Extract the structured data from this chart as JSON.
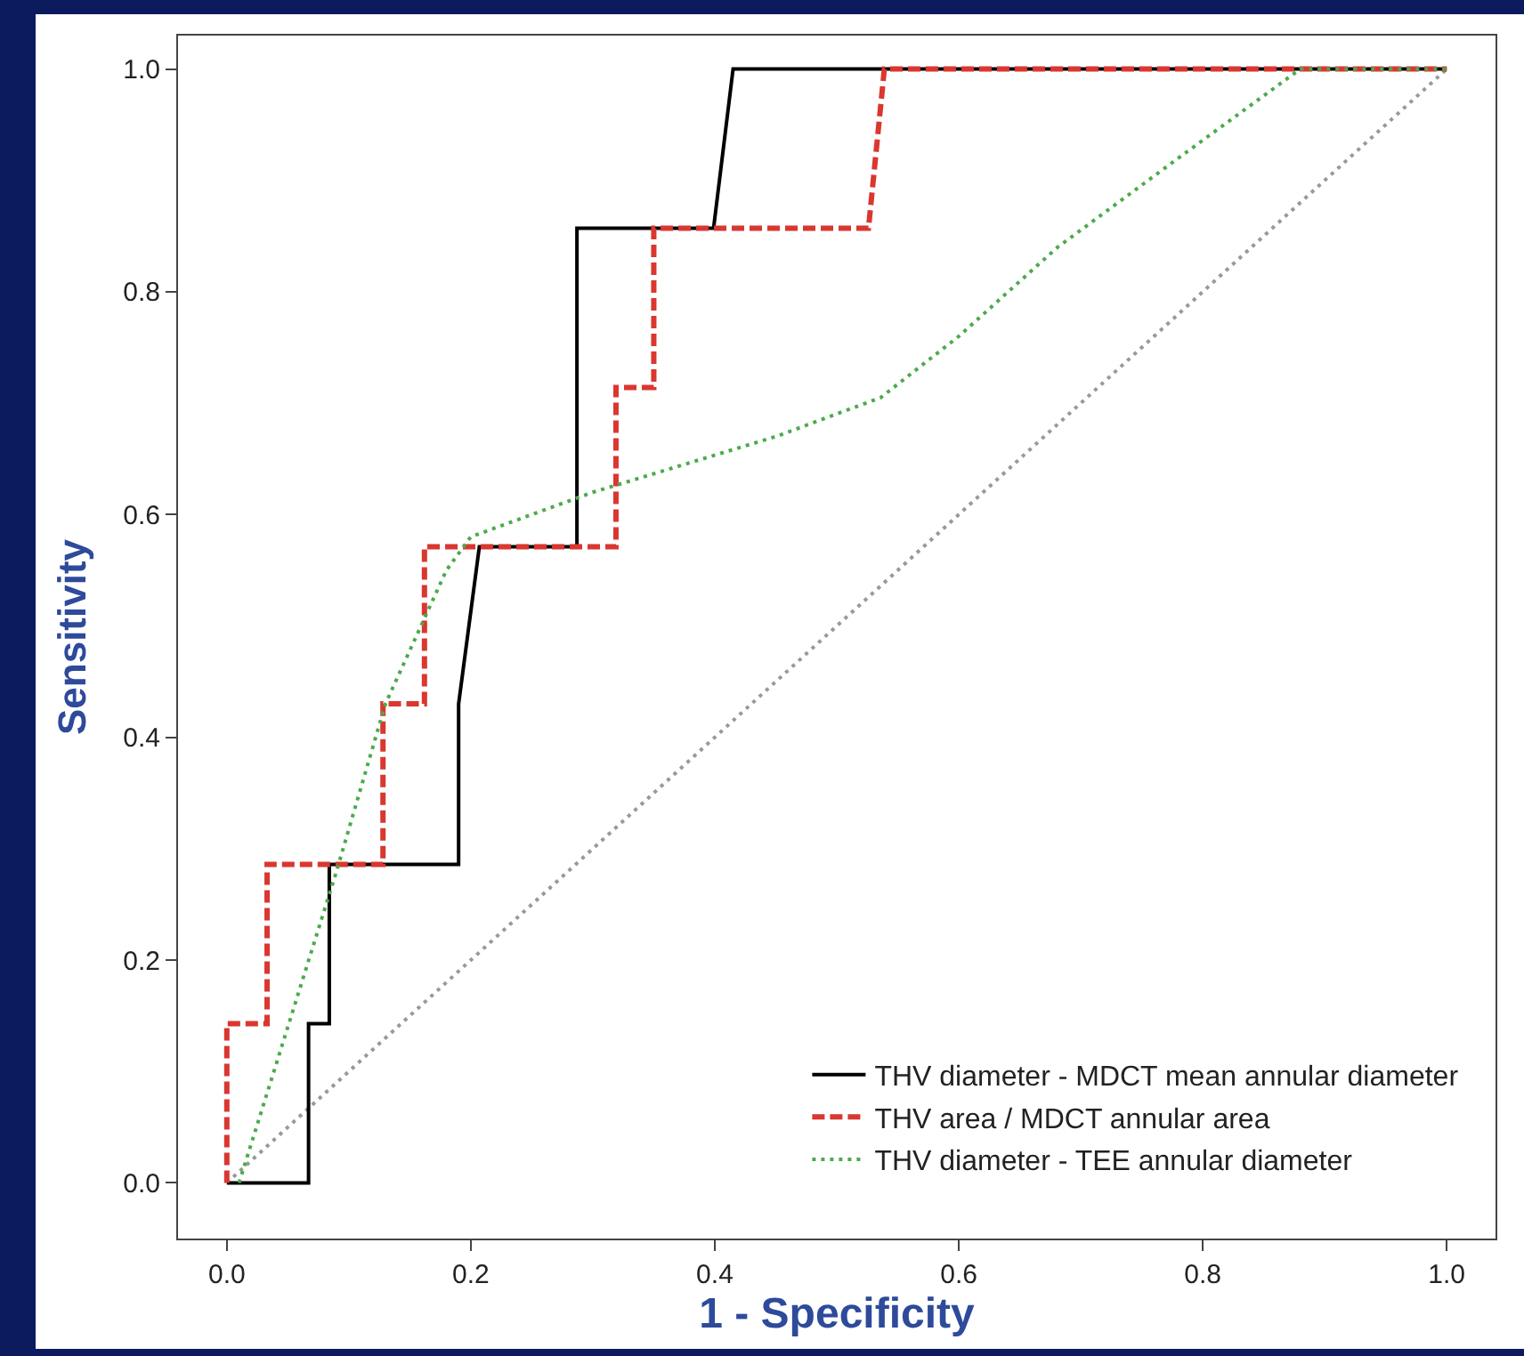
{
  "chart_data": {
    "type": "line",
    "xlabel": "1 - Specificity",
    "ylabel": "Sensitivity",
    "xlim": [
      -0.04,
      1.04
    ],
    "ylim": [
      -0.05,
      1.03
    ],
    "xticks": [
      {
        "value": 0,
        "label": "0.0"
      },
      {
        "value": 0.2,
        "label": "0.2"
      },
      {
        "value": 0.4,
        "label": "0.4"
      },
      {
        "value": 0.6,
        "label": "0.6"
      },
      {
        "value": 0.8,
        "label": "0.8"
      },
      {
        "value": 1,
        "label": "1.0"
      }
    ],
    "yticks": [
      {
        "value": 0,
        "label": "0.0"
      },
      {
        "value": 0.2,
        "label": "0.2"
      },
      {
        "value": 0.4,
        "label": "0.4"
      },
      {
        "value": 0.6,
        "label": "0.6"
      },
      {
        "value": 0.8,
        "label": "0.8"
      },
      {
        "value": 1,
        "label": "1.0"
      }
    ],
    "grid": false,
    "legend": "bottom right",
    "marker": "none",
    "series": [
      {
        "name": "THV diameter - MDCT mean annular diameter",
        "color": "#000000",
        "line_style": "solid",
        "x": [
          0,
          0.067,
          0.067,
          0.084,
          0.084,
          0.19,
          0.19,
          0.207,
          0.287,
          0.287,
          0.399,
          0.415,
          1
        ],
        "values": [
          0,
          0,
          0.143,
          0.143,
          0.286,
          0.286,
          0.43,
          0.571,
          0.571,
          0.857,
          0.857,
          1,
          1
        ]
      },
      {
        "name": "THV area / MDCT annular area",
        "color": "#d9372f",
        "line_style": "dashed",
        "x": [
          0,
          0,
          0.033,
          0.033,
          0.128,
          0.128,
          0.162,
          0.162,
          0.319,
          0.319,
          0.35,
          0.35,
          0.526,
          0.539,
          1
        ],
        "values": [
          0,
          0.143,
          0.143,
          0.286,
          0.286,
          0.43,
          0.43,
          0.571,
          0.571,
          0.714,
          0.714,
          0.857,
          0.857,
          1,
          1
        ]
      },
      {
        "name": "THV diameter - TEE annular diameter",
        "color": "#4caa4c",
        "line_style": "dotted",
        "x": [
          0.01,
          0.05,
          0.09,
          0.13,
          0.18,
          0.2,
          0.3,
          0.45,
          0.536,
          0.6,
          0.681,
          0.78,
          0.88,
          1
        ],
        "values": [
          0,
          0.14,
          0.28,
          0.43,
          0.55,
          0.58,
          0.62,
          0.67,
          0.705,
          0.76,
          0.84,
          0.92,
          1,
          1
        ]
      },
      {
        "color": "#999999",
        "line_style": "dotted",
        "x": [
          0,
          1
        ],
        "values": [
          0,
          1
        ]
      }
    ]
  }
}
